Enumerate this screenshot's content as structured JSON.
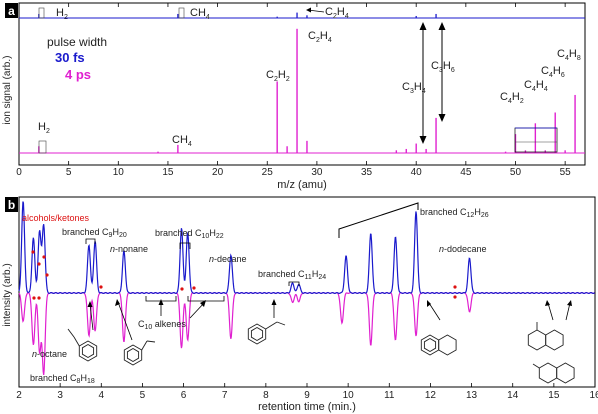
{
  "chart_data": [
    {
      "panel": "a",
      "type": "line",
      "xlabel": "m/z (amu)",
      "ylabel": "ion signal (arb.)",
      "xlim": [
        0,
        57
      ],
      "xticks": [
        0,
        5,
        10,
        15,
        20,
        25,
        30,
        35,
        40,
        45,
        50,
        55
      ],
      "ylim": [
        0,
        1
      ],
      "legend": {
        "title": "pulse width",
        "position": "top-left"
      },
      "series": [
        {
          "name": "30 fs",
          "color": "#1a1acc",
          "x": [
            2,
            16,
            26,
            28,
            29,
            40,
            42
          ],
          "values": [
            0.03,
            0.03,
            0.01,
            0.04,
            0.02,
            0.015,
            0.03
          ]
        },
        {
          "name": "4 ps",
          "color": "#e020d0",
          "x": [
            2,
            14,
            16,
            26,
            27,
            28,
            29,
            38,
            39,
            40,
            41,
            42,
            49,
            50,
            51,
            52,
            53,
            54,
            55,
            56
          ],
          "values": [
            0.05,
            0.01,
            0.06,
            0.53,
            0.05,
            0.92,
            0.09,
            0.02,
            0.03,
            0.07,
            0.03,
            0.26,
            0.01,
            0.14,
            0.02,
            0.22,
            0.02,
            0.3,
            0.02,
            0.43
          ]
        }
      ],
      "labels": {
        "h2_top": "H",
        "ch4_top": "CH",
        "c2h4_top": "C",
        "h2_bottom": "H",
        "ch4_bottom": "CH",
        "c2h2": "C",
        "c2h4": "C",
        "c3h4": "C",
        "c3h6": "C",
        "c4h2": "C",
        "c4h4": "C",
        "c4h6": "C",
        "c4h8": "C",
        "sub_2": "2",
        "sub_4": "4",
        "sub_3": "3",
        "sub_6": "6",
        "sub_8": "8"
      }
    },
    {
      "panel": "b",
      "type": "line",
      "xlabel": "retention time (min.)",
      "ylabel": "intensity (arb.)",
      "xlim": [
        2,
        16
      ],
      "xticks": [
        2,
        3,
        4,
        5,
        6,
        7,
        8,
        9,
        10,
        11,
        12,
        13,
        14,
        15,
        16
      ],
      "series": [
        {
          "name": "30 fs",
          "color": "#1a1acc",
          "peaks_x": [
            2.1,
            2.35,
            2.5,
            2.6,
            3.7,
            3.85,
            4.55,
            5.95,
            6.1,
            7.15,
            8.65,
            8.8,
            9.95,
            10.55,
            11.15,
            11.65,
            12.95
          ],
          "peaks_y": [
            0.92,
            0.55,
            0.62,
            0.68,
            0.48,
            0.52,
            0.42,
            0.65,
            0.6,
            0.38,
            0.1,
            0.09,
            0.37,
            0.6,
            0.56,
            0.82,
            0.35
          ]
        },
        {
          "name": "4 ps",
          "color": "#e020d0",
          "peaks_x": [
            2.1,
            2.35,
            2.5,
            2.6,
            3.7,
            3.85,
            4.55,
            5.95,
            6.1,
            7.15,
            8.65,
            8.8,
            9.85,
            10.55,
            11.15,
            11.65,
            12.95
          ],
          "peaks_y": [
            -0.3,
            -0.55,
            -0.62,
            -0.85,
            -0.45,
            -0.4,
            -0.52,
            -0.58,
            -0.5,
            -0.48,
            -0.1,
            -0.09,
            -0.32,
            -0.55,
            -0.5,
            -0.45,
            -0.2
          ]
        }
      ],
      "labels": {
        "alcohols": "alcohols/ketones",
        "branched": "branched C",
        "c9h20": [
          "9",
          "H",
          "20"
        ],
        "c10h22": [
          "10",
          "H",
          "22"
        ],
        "c11h24": [
          "11",
          "H",
          "24"
        ],
        "c12h26": [
          "12",
          "H",
          "26"
        ],
        "c8h18": [
          "8",
          "H",
          "18"
        ],
        "c10alkenes": [
          "C",
          "10",
          " alkenes"
        ],
        "n": "n",
        "nonane": "-nonane",
        "decane": "-decane",
        "dodecane": "-dodecane",
        "octane": "-octane"
      }
    }
  ],
  "panel_labels": [
    "a",
    "b"
  ],
  "colors": {
    "blue": "#1a1acc",
    "magenta": "#e020d0",
    "red": "#dd1111"
  },
  "legend": {
    "title": "pulse width",
    "blue": "30 fs",
    "magenta": "4 ps"
  }
}
